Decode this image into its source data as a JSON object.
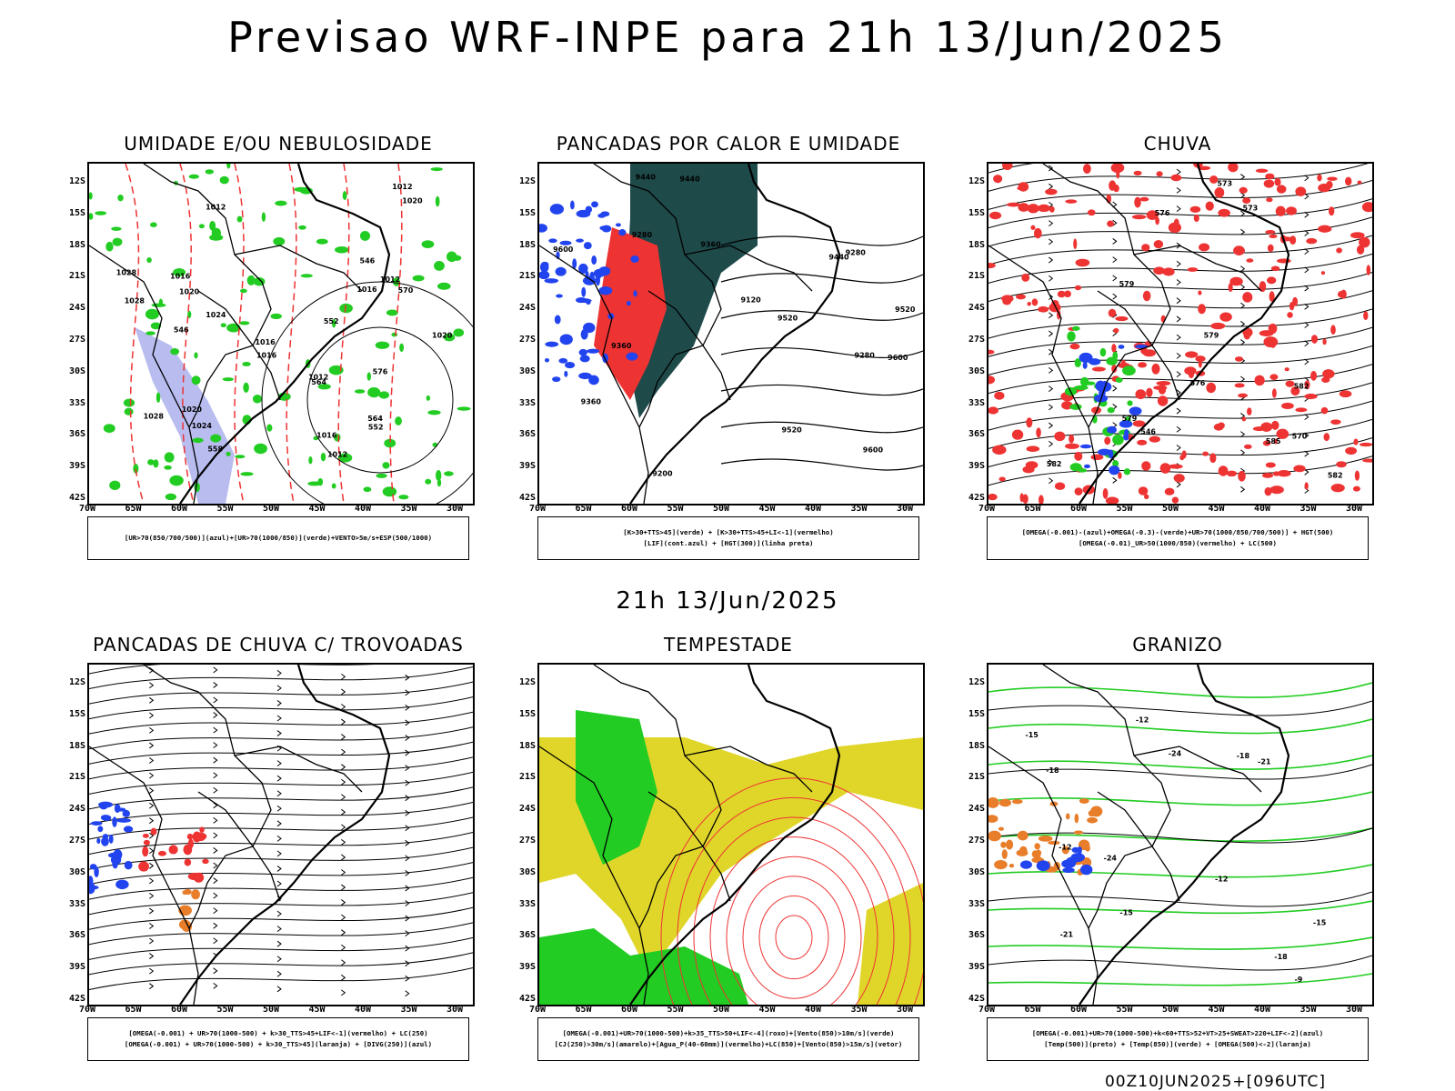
{
  "title": "Previsao WRF-INPE  para 21h 13/Jun/2025",
  "subtitle": "21h 13/Jun/2025",
  "footer": "00Z10JUN2025+[096UTC]",
  "lat_labels": [
    "12S",
    "15S",
    "18S",
    "21S",
    "24S",
    "27S",
    "30S",
    "33S",
    "36S",
    "39S",
    "42S"
  ],
  "lon_labels": [
    "70W",
    "65W",
    "60W",
    "55W",
    "50W",
    "45W",
    "40W",
    "35W",
    "30W"
  ],
  "colors": {
    "green": "#22cc22",
    "red": "#ee3333",
    "blue": "#2244ee",
    "darkteal": "#1f4a4a",
    "yellow": "#e0d62a",
    "orange": "#e87d2a",
    "lavender": "#9aa0e8",
    "black": "#000000"
  },
  "panels": [
    {
      "title": "UMIDADE E/OU NEBULOSIDADE",
      "caption": [
        "[UR>70(850/700/500)](azul)+[UR>70(1000/850)](verde)+VENTO>5m/s+ESP(500/1000)"
      ],
      "contour_labels": [
        "1012",
        "1012",
        "1020",
        "1016",
        "1012",
        "1016",
        "1020",
        "1024",
        "1016",
        "1024",
        "1028",
        "1028",
        "1016",
        "1012",
        "1016",
        "1012",
        "1028",
        "1020",
        "576",
        "570",
        "564",
        "564",
        "558",
        "552",
        "552",
        "546",
        "546",
        "1020"
      ]
    },
    {
      "title": "PANCADAS POR CALOR E UMIDADE",
      "caption": [
        "[K>30+TTS>45](verde)  +  [K>30+TTS>45+LI<-1](vermelho)",
        "[LIF](cont.azul)  +  [HGT(300)](linha preta)"
      ],
      "contour_labels": [
        "9600",
        "9520",
        "9440",
        "9360",
        "9280",
        "9200",
        "9120",
        "9600",
        "9520",
        "9520",
        "9600",
        "9440",
        "9360",
        "9280",
        "9440",
        "9360",
        "9280"
      ]
    },
    {
      "title": "CHUVA",
      "caption": [
        "[OMEGA(-0.001)-(azul)+OMEGA(-0.3)-(verde)+UR>70(1000/850/700/500)]  +  HGT(500)",
        "[OMEGA(-0.01)_UR>50(1000/850)(vermelho)  +  LC(500)"
      ],
      "contour_labels": [
        "582",
        "582",
        "579",
        "576",
        "576",
        "573",
        "570",
        "573",
        "585",
        "579",
        "582",
        "579",
        "546"
      ]
    },
    {
      "title": "PANCADAS DE CHUVA C/ TROVOADAS",
      "caption": [
        "[OMEGA(-0.001)  +  UR>70(1000-500)  +  k>30_TTS>45+LIF<-1](vermelho)  +  LC(250)",
        "[OMEGA(-0.001)  +  UR>70(1000-500)  +  k>30_TTS>45](laranja)  +  [DIVG(250)](azul)"
      ],
      "contour_labels": []
    },
    {
      "title": "TEMPESTADE",
      "caption": [
        "[OMEGA(-0.001)+UR>70(1000-500)+k>35_TTS>50+LIF<-4](roxo)+[Vento(850)>10m/s](verde)",
        "[CJ(250)>30m/s](amarelo)+[Agua_P(40-60mm)](vermelho)+LC(850)+[Vento(850)>15m/s](vetor)"
      ],
      "contour_labels": []
    },
    {
      "title": "GRANIZO",
      "caption": [
        "[OMEGA(-0.001)+UR>70(1000-500)+k<60+TTS>52+VT>25+SWEAT>220+LIF<-2](azul)",
        "[Temp(500)](preto)  +  [Temp(850)](verde)  +  [OMEGA(500)<-2](laranja)"
      ],
      "contour_labels": [
        "-9",
        "-12",
        "-12",
        "-15",
        "-15",
        "-18",
        "-21",
        "-24",
        "-21",
        "-24",
        "-18",
        "-18",
        "-15",
        "-12"
      ]
    }
  ]
}
